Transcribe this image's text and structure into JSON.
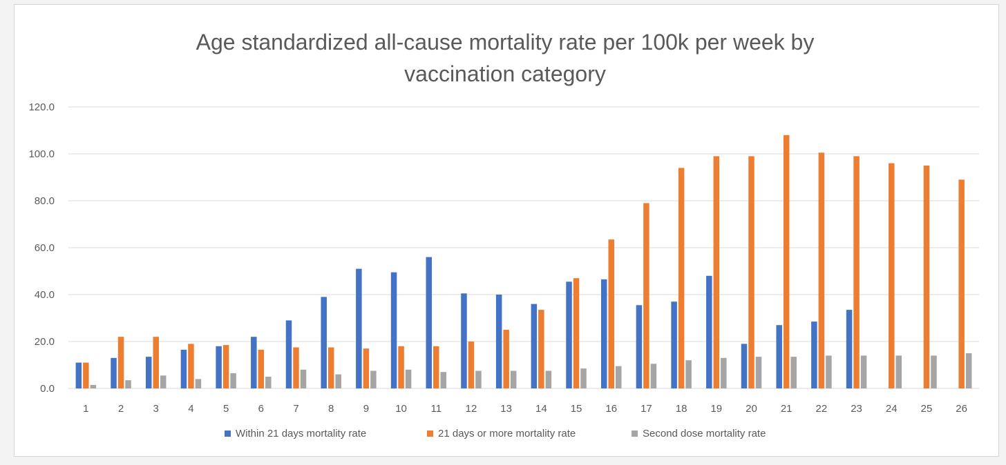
{
  "chart_data": {
    "type": "bar",
    "title_lines": [
      "Age standardized all-cause mortality rate per 100k per week by",
      "vaccination category"
    ],
    "xlabel": "",
    "ylabel": "",
    "ylim": [
      0,
      120
    ],
    "y_ticks": [
      "0.0",
      "20.0",
      "40.0",
      "60.0",
      "80.0",
      "100.0",
      "120.0"
    ],
    "y_tick_values": [
      0,
      20,
      40,
      60,
      80,
      100,
      120
    ],
    "grid": true,
    "legend_position": "bottom",
    "categories": [
      "1",
      "2",
      "3",
      "4",
      "5",
      "6",
      "7",
      "8",
      "9",
      "10",
      "11",
      "12",
      "13",
      "14",
      "15",
      "16",
      "17",
      "18",
      "19",
      "20",
      "21",
      "22",
      "23",
      "24",
      "25",
      "26"
    ],
    "series": [
      {
        "name": "Within 21 days mortality rate",
        "color": "#4472c4",
        "values": [
          11,
          13,
          13.5,
          16.5,
          18,
          22,
          29,
          39,
          51,
          49.5,
          56,
          40.5,
          40,
          36,
          45.5,
          46.5,
          35.5,
          37,
          48,
          19,
          27,
          28.5,
          33.5,
          null,
          null,
          null
        ]
      },
      {
        "name": "21 days or more mortality rate",
        "color": "#ed7d31",
        "values": [
          11,
          22,
          22,
          19,
          18.5,
          16.5,
          17.5,
          17.5,
          17,
          18,
          18,
          20,
          25,
          33.5,
          47,
          63.5,
          79,
          94,
          99,
          99,
          108,
          100.5,
          99,
          96,
          95,
          89
        ]
      },
      {
        "name": "Second dose mortality rate",
        "color": "#a5a5a5",
        "values": [
          1.5,
          3.5,
          5.5,
          4,
          6.5,
          5,
          8,
          6,
          7.5,
          8,
          7,
          7.5,
          7.5,
          7.5,
          8.5,
          9.5,
          10.5,
          12,
          13,
          13.5,
          13.5,
          14,
          14,
          14,
          14,
          15
        ]
      }
    ]
  }
}
